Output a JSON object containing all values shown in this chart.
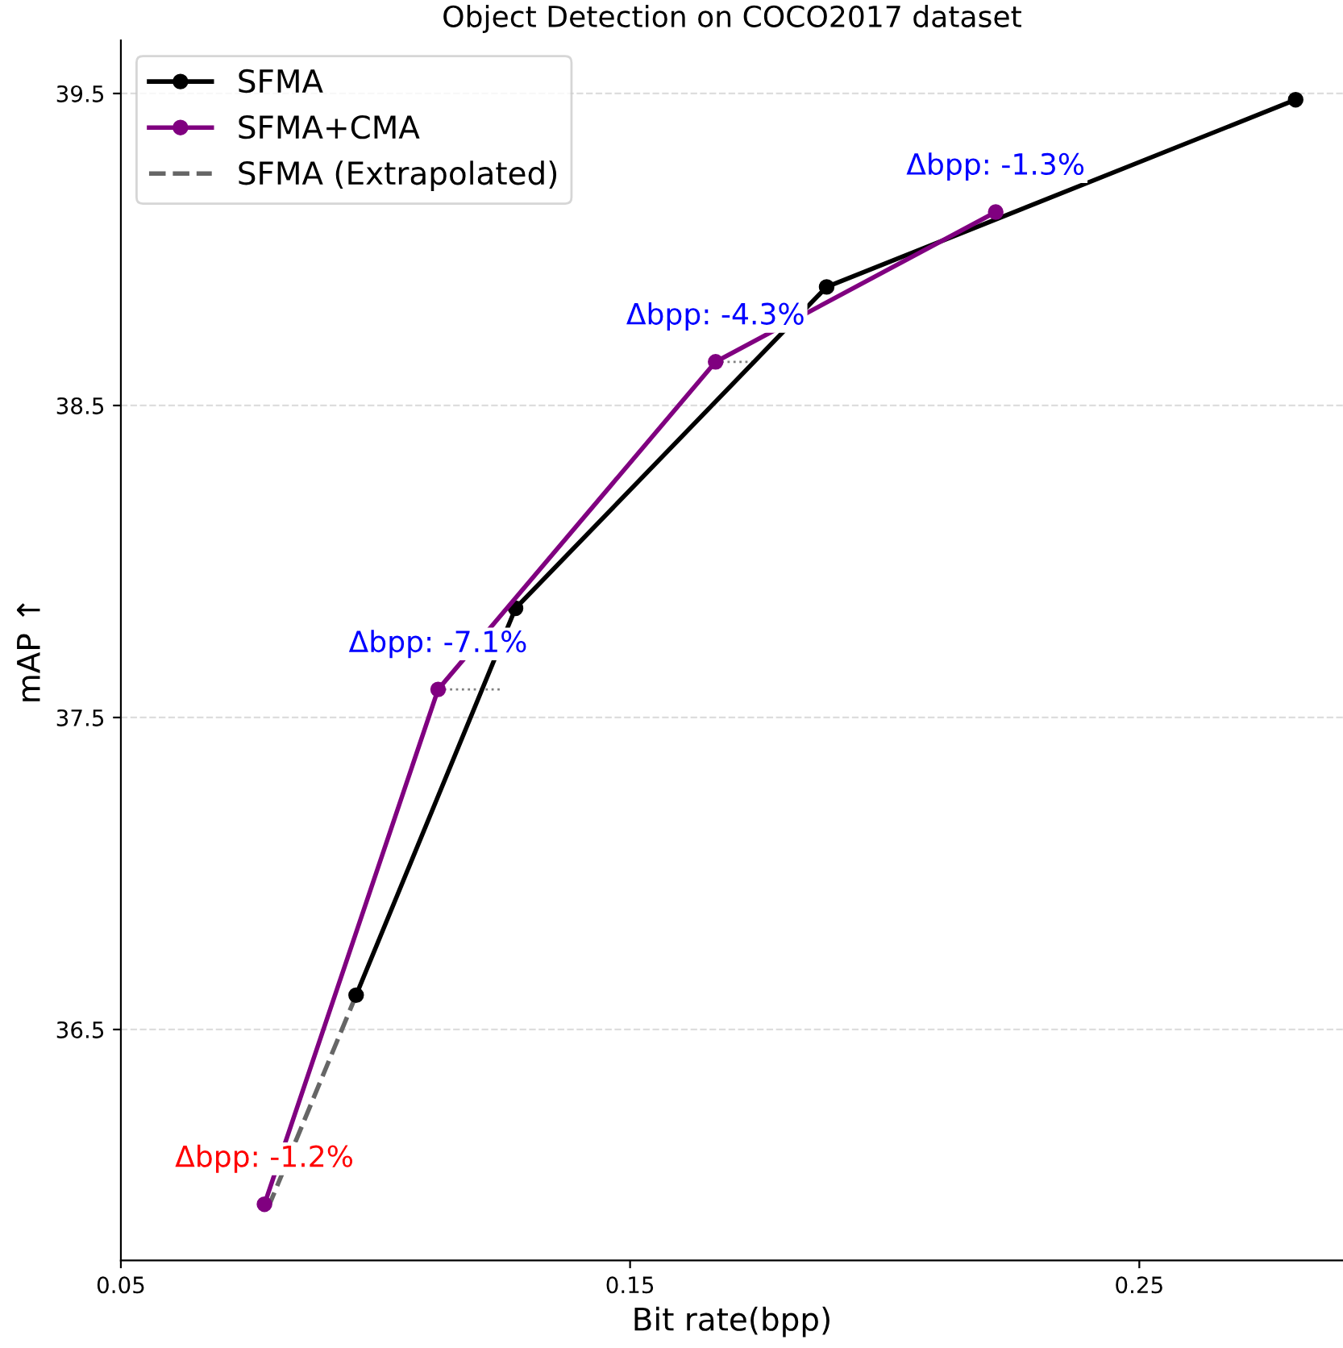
{
  "chart_data": {
    "type": "line",
    "title": "Object Detection on COCO2017 dataset",
    "xlabel": "Bit rate(bpp)",
    "ylabel": "mAP ↑",
    "xlim": [
      0.05,
      0.29
    ],
    "ylim": [
      35.76,
      39.67
    ],
    "xticks": [
      0.05,
      0.15,
      0.25
    ],
    "yticks": [
      36.5,
      37.5,
      38.5,
      39.5
    ],
    "grid": "y",
    "legend": "top left",
    "marker": "circle",
    "line_style": "solid",
    "series": [
      {
        "name": "SFMA",
        "color": "#000000",
        "x": [
          0.0962,
          0.1275,
          0.1886,
          0.2807
        ],
        "values": [
          36.61,
          37.85,
          38.88,
          39.48
        ]
      },
      {
        "name": "SFMA+CMA",
        "color": "#800080",
        "x": [
          0.0782,
          0.1123,
          0.1668,
          0.2218
        ],
        "values": [
          35.94,
          37.59,
          38.64,
          39.12
        ]
      },
      {
        "name": "SFMA (Extrapolated)",
        "color": "#666666",
        "line_style": "dashed",
        "marker": "none",
        "x": [
          0.0962,
          0.0792
        ],
        "values": [
          36.61,
          35.94
        ]
      },
      {
        "color": "#808080",
        "line_style": "dotted",
        "marker": "none",
        "x": [
          0.1123,
          0.125
        ],
        "values": [
          37.59,
          37.59
        ]
      },
      {
        "color": "#808080",
        "line_style": "dotted",
        "marker": "none",
        "x": [
          0.1668,
          0.1744
        ],
        "values": [
          38.64,
          38.64
        ]
      }
    ],
    "annotations": [
      {
        "text": "Δbpp: -1.2%",
        "x": 0.0782,
        "y": 35.94
      },
      {
        "text": "Δbpp: -7.1%",
        "x": 0.1123,
        "y": 37.59
      },
      {
        "text": "Δbpp: -4.3%",
        "x": 0.1668,
        "y": 38.64
      },
      {
        "text": "Δbpp: -1.3%",
        "x": 0.2218,
        "y": 39.12
      }
    ]
  }
}
